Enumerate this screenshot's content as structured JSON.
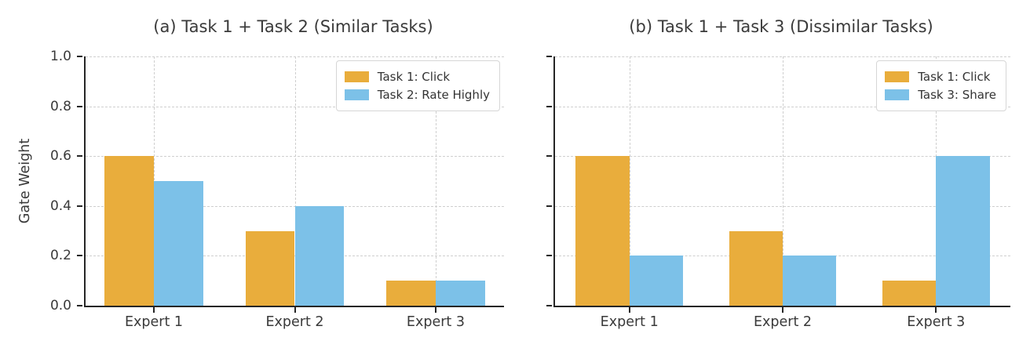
{
  "figure": {
    "background": "#ffffff"
  },
  "axis": {
    "ylabel": "Gate Weight",
    "yticks": [
      "0.0",
      "0.2",
      "0.4",
      "0.6",
      "0.8",
      "1.0"
    ],
    "ytick_values": [
      0.0,
      0.2,
      0.4,
      0.6,
      0.8,
      1.0
    ],
    "ylim": [
      0.0,
      1.0
    ],
    "grid": "dashed",
    "grid_color": "#cfcfcf",
    "spine_color": "#262626",
    "text_color": "#3a3a3a"
  },
  "chart_data": [
    {
      "type": "bar",
      "title": "(a) Task 1 + Task 2 (Similar Tasks)",
      "categories": [
        "Expert 1",
        "Expert 2",
        "Expert 3"
      ],
      "series": [
        {
          "name": "Task 1: Click",
          "color": "#E9AD3C",
          "values": [
            0.6,
            0.3,
            0.1
          ]
        },
        {
          "name": "Task 2: Rate Highly",
          "color": "#7CC1E8",
          "values": [
            0.5,
            0.4,
            0.1
          ]
        }
      ],
      "xlabel": "",
      "ylabel": "Gate Weight",
      "ylim": [
        0.0,
        1.0
      ],
      "grid": true,
      "legend_position": "upper right",
      "show_y_tick_labels": true
    },
    {
      "type": "bar",
      "title": "(b) Task 1 + Task 3 (Dissimilar Tasks)",
      "categories": [
        "Expert 1",
        "Expert 2",
        "Expert 3"
      ],
      "series": [
        {
          "name": "Task 1: Click",
          "color": "#E9AD3C",
          "values": [
            0.6,
            0.3,
            0.1
          ]
        },
        {
          "name": "Task 3: Share",
          "color": "#7CC1E8",
          "values": [
            0.2,
            0.2,
            0.6
          ]
        }
      ],
      "xlabel": "",
      "ylabel": "",
      "ylim": [
        0.0,
        1.0
      ],
      "grid": true,
      "legend_position": "upper right",
      "show_y_tick_labels": false
    }
  ]
}
